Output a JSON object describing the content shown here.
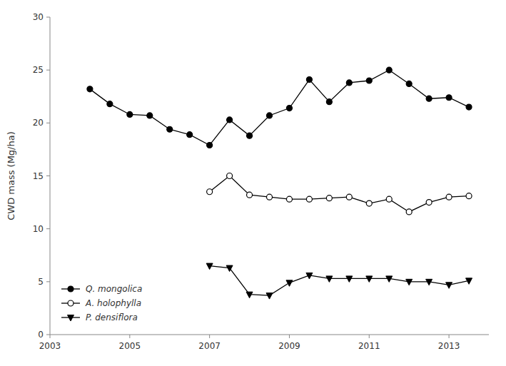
{
  "chart_data": {
    "type": "line",
    "y_label": "CWD mass (Mg/ha)",
    "xlim": [
      2003,
      2014
    ],
    "xticks": [
      2003,
      2005,
      2007,
      2009,
      2011,
      2013
    ],
    "ylim": [
      0,
      30
    ],
    "yticks": [
      0,
      5,
      10,
      15,
      20,
      25,
      30
    ],
    "grid": false,
    "legend": "lower left",
    "series": [
      {
        "name": "Q. mongolica",
        "color": "black",
        "marker": "circle",
        "x": [
          2004.0,
          2004.5,
          2005.0,
          2005.5,
          2006.0,
          2006.5,
          2007.0,
          2007.5,
          2008.0,
          2008.5,
          2009.0,
          2009.5,
          2010.0,
          2010.5,
          2011.0,
          2011.5,
          2012.0,
          2012.5,
          2013.0,
          2013.5
        ],
        "values": [
          23.2,
          21.8,
          20.8,
          20.7,
          19.4,
          18.9,
          17.9,
          20.3,
          18.8,
          20.7,
          21.4,
          24.1,
          22.0,
          23.8,
          24.0,
          25.0,
          23.7,
          22.3,
          22.4,
          21.5
        ]
      },
      {
        "name": "A. holophylla",
        "color": "black",
        "marker": "open-circle",
        "x": [
          2007.0,
          2007.5,
          2008.0,
          2008.5,
          2009.0,
          2009.5,
          2010.0,
          2010.5,
          2011.0,
          2011.5,
          2012.0,
          2012.5,
          2013.0,
          2013.5
        ],
        "values": [
          13.5,
          15.0,
          13.2,
          13.0,
          12.8,
          12.8,
          12.9,
          13.0,
          12.4,
          12.8,
          11.6,
          12.5,
          13.0,
          13.1
        ]
      },
      {
        "name": "P. densiflora",
        "color": "black",
        "marker": "triangle-down",
        "x": [
          2007.0,
          2007.5,
          2008.0,
          2008.5,
          2009.0,
          2009.5,
          2010.0,
          2010.5,
          2011.0,
          2011.5,
          2012.0,
          2012.5,
          2013.0,
          2013.5
        ],
        "values": [
          6.5,
          6.3,
          3.8,
          3.7,
          4.9,
          5.6,
          5.3,
          5.3,
          5.3,
          5.3,
          5.0,
          5.0,
          4.7,
          5.1
        ]
      }
    ]
  }
}
